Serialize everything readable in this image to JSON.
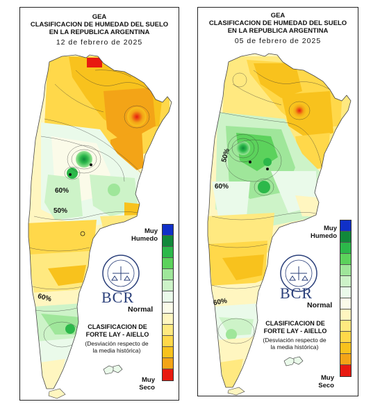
{
  "colors": {
    "muy_humedo": "#1030c8",
    "humid_dark": "#11883a",
    "humid_mid": "#2cb84a",
    "humid_light": "#8fe08f",
    "normal_light": "#e2f7e0",
    "normal": "#fbfbe9",
    "dry_light": "#fff5b2",
    "dry_mid": "#ffe15a",
    "dry_yellow": "#f9c81c",
    "dry_orange": "#f3a417",
    "muy_seco": "#e81a10",
    "bcr_blue": "#2a3f7a"
  },
  "legend_scale": [
    "#1030c8",
    "#11883a",
    "#2cb84a",
    "#5cd25c",
    "#9fe69a",
    "#cdf3c8",
    "#eafaea",
    "#fbfbe9",
    "#fff6c0",
    "#ffe980",
    "#ffd84a",
    "#f8c21d",
    "#f3a417",
    "#e81a10"
  ],
  "left": {
    "title_line1": "GEA",
    "title_line2": "CLASIFICACION DE HUMEDAD DEL SUELO",
    "title_line3": "EN LA REPUBLICA ARGENTINA",
    "date": "12 de febrero de 2025",
    "label_muy_humedo_1": "Muy",
    "label_muy_humedo_2": "Humedo",
    "label_normal": "Normal",
    "label_muy_seco_1": "Muy",
    "label_muy_seco_2": "Seco",
    "bcr": "BCR",
    "class_title_1": "CLASIFICACION DE",
    "class_title_2": "FORTE LAY - AIELLO",
    "class_sub_1": "(Desviación respecto de",
    "class_sub_2": "la media histórica)",
    "iso_1": "60%",
    "iso_2": "50%",
    "iso_3": "60%"
  },
  "right": {
    "title_line1": "GEA",
    "title_line2": "CLASIFICACION DE HUMEDAD DEL SUELO",
    "title_line3": "EN LA REPUBLICA ARGENTINA",
    "date": "05 de febrero de 2025",
    "label_muy_humedo_1": "Muy",
    "label_muy_humedo_2": "Humedo",
    "label_normal": "Normal",
    "label_muy_seco_1": "Muy",
    "label_muy_seco_2": "Seco",
    "bcr": "BCR",
    "class_title_1": "CLASIFICACION DE",
    "class_title_2": "FORTE LAY - AIELLO",
    "class_sub_1": "(Desviación respecto de",
    "class_sub_2": "la media histórica)",
    "iso_1": "50%",
    "iso_2": "60%",
    "iso_3": "60%"
  }
}
